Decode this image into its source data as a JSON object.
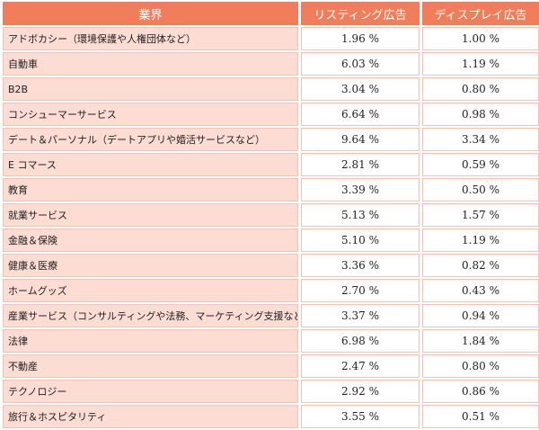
{
  "table": {
    "headers": {
      "industry": "業界",
      "listing": "リスティング広告",
      "display": "ディスプレイ広告"
    },
    "rows": [
      {
        "industry": "アドボカシー（環境保護や人権団体など）",
        "listing": "1.96 %",
        "display": "1.00 %"
      },
      {
        "industry": "自動車",
        "listing": "6.03 %",
        "display": "1.19 %"
      },
      {
        "industry": "B2B",
        "listing": "3.04 %",
        "display": "0.80 %"
      },
      {
        "industry": "コンシューマーサービス",
        "listing": "6.64 %",
        "display": "0.98 %"
      },
      {
        "industry": "デート＆パーソナル（デートアプリや婚活サービスなど）",
        "listing": "9.64 %",
        "display": "3.34 %"
      },
      {
        "industry": "E コマース",
        "listing": "2.81 %",
        "display": "0.59 %"
      },
      {
        "industry": "教育",
        "listing": "3.39 %",
        "display": "0.50 %"
      },
      {
        "industry": "就業サービス",
        "listing": "5.13 %",
        "display": "1.57 %"
      },
      {
        "industry": "金融＆保険",
        "listing": "5.10 %",
        "display": "1.19 %"
      },
      {
        "industry": "健康＆医療",
        "listing": "3.36 %",
        "display": "0.82 %"
      },
      {
        "industry": "ホームグッズ",
        "listing": "2.70 %",
        "display": "0.43 %"
      },
      {
        "industry": "産業サービス（コンサルティングや法務、マーケティング支援など）",
        "listing": "3.37 %",
        "display": "0.94 %"
      },
      {
        "industry": "法律",
        "listing": "6.98 %",
        "display": "1.84 %"
      },
      {
        "industry": "不動産",
        "listing": "2.47 %",
        "display": "0.80 %"
      },
      {
        "industry": "テクノロジー",
        "listing": "2.92 %",
        "display": "0.86 %"
      },
      {
        "industry": "旅行＆ホスピタリティ",
        "listing": "3.55 %",
        "display": "0.51 %"
      }
    ]
  },
  "colors": {
    "header_bg": "#f07e5b",
    "label_bg": "#fcdcd3",
    "value_bg": "#ffffff"
  }
}
